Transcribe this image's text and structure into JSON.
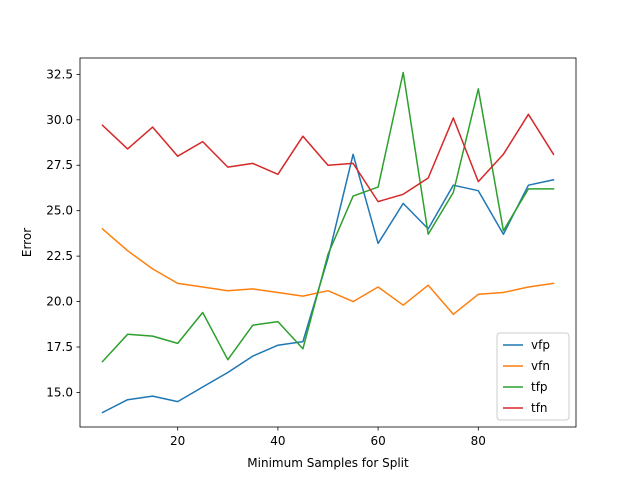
{
  "chart_data": {
    "type": "line",
    "title": "",
    "xlabel": "Minimum Samples for Split",
    "ylabel": "Error",
    "xlim": [
      0.5,
      99.5
    ],
    "ylim": [
      13.1,
      33.4
    ],
    "xticks": [
      20,
      40,
      60,
      80
    ],
    "yticks": [
      15.0,
      17.5,
      20.0,
      22.5,
      25.0,
      27.5,
      30.0,
      32.5
    ],
    "ytick_labels": [
      "15.0",
      "17.5",
      "20.0",
      "22.5",
      "25.0",
      "27.5",
      "30.0",
      "32.5"
    ],
    "grid": false,
    "legend_position": "lower-right",
    "x": [
      5,
      10,
      15,
      20,
      25,
      30,
      35,
      40,
      45,
      50,
      55,
      60,
      65,
      70,
      75,
      80,
      85,
      90,
      95
    ],
    "series": [
      {
        "name": "vfp",
        "color": "#1f77b4",
        "values": [
          13.9,
          14.6,
          14.8,
          14.5,
          15.3,
          16.1,
          17.0,
          17.6,
          17.8,
          22.4,
          28.1,
          23.2,
          25.4,
          24.0,
          26.4,
          26.1,
          23.7,
          26.4,
          26.7
        ]
      },
      {
        "name": "vfn",
        "color": "#ff7f0e",
        "values": [
          24.0,
          22.8,
          21.8,
          21.0,
          20.8,
          20.6,
          20.7,
          20.5,
          20.3,
          20.6,
          20.0,
          20.8,
          19.8,
          20.9,
          19.3,
          20.4,
          20.5,
          20.8,
          21.0
        ]
      },
      {
        "name": "tfp",
        "color": "#2ca02c",
        "values": [
          16.7,
          18.2,
          18.1,
          17.7,
          19.4,
          16.8,
          18.7,
          18.9,
          17.4,
          22.6,
          25.8,
          26.3,
          32.6,
          23.7,
          26.0,
          31.7,
          23.9,
          26.2,
          26.2
        ]
      },
      {
        "name": "tfn",
        "color": "#d62728",
        "values": [
          29.7,
          28.4,
          29.6,
          28.0,
          28.8,
          27.4,
          27.6,
          27.0,
          29.1,
          27.5,
          27.6,
          25.5,
          25.9,
          26.8,
          30.1,
          26.6,
          28.1,
          30.3,
          28.1
        ]
      }
    ]
  }
}
